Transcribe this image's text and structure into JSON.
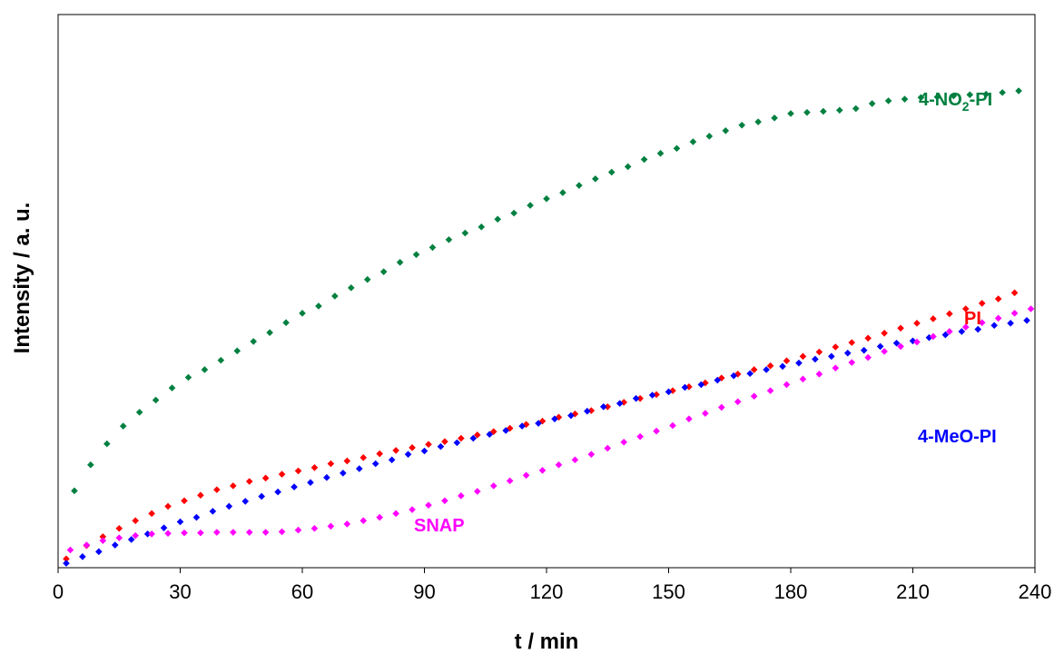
{
  "chart_data": {
    "type": "scatter",
    "xlabel": "t / min",
    "ylabel": "Intensity / a. u.",
    "xlim": [
      0,
      240
    ],
    "ylim": [
      0,
      100
    ],
    "x_ticks": [
      "0",
      "30",
      "60",
      "90",
      "120",
      "150",
      "180",
      "210",
      "240"
    ],
    "grid": false,
    "legend": "none",
    "series": [
      {
        "name": "4-NO",
        "name_subscript": "2",
        "name_suffix": "-PI",
        "label_text": "4-NO2-PI",
        "color": "#008040",
        "marker": "diamond",
        "points": [
          [
            4,
            13.9
          ],
          [
            8,
            18.6
          ],
          [
            12,
            22.4
          ],
          [
            16,
            25.6
          ],
          [
            20,
            28.1
          ],
          [
            24,
            30.3
          ],
          [
            28,
            32.5
          ],
          [
            32,
            34.4
          ],
          [
            36,
            35.8
          ],
          [
            40,
            37.5
          ],
          [
            44,
            39.2
          ],
          [
            48,
            40.9
          ],
          [
            52,
            42.5
          ],
          [
            56,
            44.3
          ],
          [
            60,
            46.0
          ],
          [
            64,
            47.3
          ],
          [
            68,
            49.1
          ],
          [
            72,
            50.6
          ],
          [
            76,
            52.1
          ],
          [
            80,
            53.5
          ],
          [
            84,
            55.2
          ],
          [
            88,
            56.6
          ],
          [
            92,
            57.9
          ],
          [
            96,
            59.3
          ],
          [
            100,
            60.5
          ],
          [
            104,
            61.6
          ],
          [
            108,
            63.0
          ],
          [
            112,
            64.1
          ],
          [
            116,
            65.5
          ],
          [
            120,
            66.7
          ],
          [
            124,
            67.8
          ],
          [
            128,
            69.1
          ],
          [
            132,
            70.3
          ],
          [
            136,
            71.5
          ],
          [
            140,
            72.5
          ],
          [
            144,
            73.8
          ],
          [
            148,
            74.9
          ],
          [
            152,
            75.8
          ],
          [
            156,
            77.0
          ],
          [
            160,
            78.0
          ],
          [
            164,
            79.0
          ],
          [
            168,
            80.0
          ],
          [
            172,
            80.6
          ],
          [
            176,
            81.3
          ],
          [
            180,
            82.1
          ],
          [
            184,
            82.3
          ],
          [
            188,
            82.5
          ],
          [
            192,
            82.7
          ],
          [
            196,
            83.0
          ],
          [
            200,
            83.9
          ],
          [
            204,
            84.4
          ],
          [
            208,
            84.7
          ],
          [
            212,
            85.0
          ],
          [
            216,
            85.1
          ],
          [
            220,
            85.3
          ],
          [
            224,
            85.5
          ],
          [
            228,
            85.6
          ],
          [
            232,
            85.9
          ],
          [
            236,
            86.2
          ]
        ]
      },
      {
        "name": "PI",
        "color": "#ff0000",
        "marker": "diamond",
        "points": [
          [
            2,
            1.6
          ],
          [
            7,
            4.0
          ],
          [
            11,
            5.6
          ],
          [
            15,
            7.1
          ],
          [
            19,
            8.5
          ],
          [
            23,
            9.8
          ],
          [
            27,
            11.1
          ],
          [
            31,
            12.1
          ],
          [
            35,
            13.1
          ],
          [
            39,
            14.1
          ],
          [
            43,
            14.8
          ],
          [
            47,
            15.6
          ],
          [
            51,
            16.2
          ],
          [
            55,
            16.9
          ],
          [
            59,
            17.5
          ],
          [
            63,
            18.1
          ],
          [
            67,
            18.8
          ],
          [
            71,
            19.3
          ],
          [
            75,
            19.9
          ],
          [
            79,
            20.6
          ],
          [
            83,
            21.2
          ],
          [
            87,
            21.7
          ],
          [
            91,
            22.3
          ],
          [
            95,
            22.8
          ],
          [
            99,
            23.4
          ],
          [
            103,
            24.0
          ],
          [
            107,
            24.6
          ],
          [
            111,
            25.2
          ],
          [
            115,
            25.9
          ],
          [
            119,
            26.5
          ],
          [
            123,
            27.2
          ],
          [
            127,
            27.8
          ],
          [
            131,
            28.4
          ],
          [
            135,
            29.1
          ],
          [
            139,
            29.9
          ],
          [
            143,
            30.6
          ],
          [
            147,
            31.3
          ],
          [
            151,
            32.0
          ],
          [
            155,
            32.7
          ],
          [
            159,
            33.4
          ],
          [
            163,
            34.3
          ],
          [
            167,
            35.0
          ],
          [
            171,
            35.8
          ],
          [
            175,
            36.5
          ],
          [
            179,
            37.4
          ],
          [
            183,
            38.2
          ],
          [
            187,
            39.0
          ],
          [
            191,
            39.9
          ],
          [
            195,
            40.7
          ],
          [
            199,
            41.5
          ],
          [
            203,
            42.4
          ],
          [
            207,
            43.3
          ],
          [
            211,
            44.2
          ],
          [
            215,
            45.0
          ],
          [
            219,
            45.9
          ],
          [
            223,
            46.8
          ],
          [
            227,
            47.8
          ],
          [
            231,
            48.6
          ],
          [
            235,
            49.7
          ]
        ]
      },
      {
        "name": "4-MeO-PI",
        "color": "#0000ff",
        "marker": "diamond",
        "points": [
          [
            2,
            0.8
          ],
          [
            6,
            2.0
          ],
          [
            10,
            2.9
          ],
          [
            14,
            4.1
          ],
          [
            18,
            5.1
          ],
          [
            22,
            6.1
          ],
          [
            26,
            7.2
          ],
          [
            30,
            8.3
          ],
          [
            34,
            9.1
          ],
          [
            38,
            10.2
          ],
          [
            42,
            11.1
          ],
          [
            46,
            12.0
          ],
          [
            50,
            12.9
          ],
          [
            54,
            13.7
          ],
          [
            58,
            14.6
          ],
          [
            62,
            15.4
          ],
          [
            66,
            16.3
          ],
          [
            70,
            17.1
          ],
          [
            74,
            17.9
          ],
          [
            78,
            18.8
          ],
          [
            82,
            19.5
          ],
          [
            86,
            20.5
          ],
          [
            90,
            21.1
          ],
          [
            94,
            21.9
          ],
          [
            98,
            22.6
          ],
          [
            102,
            23.4
          ],
          [
            106,
            24.1
          ],
          [
            110,
            24.8
          ],
          [
            114,
            25.6
          ],
          [
            118,
            26.1
          ],
          [
            122,
            26.9
          ],
          [
            126,
            27.5
          ],
          [
            130,
            28.3
          ],
          [
            134,
            29.1
          ],
          [
            138,
            29.7
          ],
          [
            142,
            30.6
          ],
          [
            146,
            31.2
          ],
          [
            150,
            31.8
          ],
          [
            154,
            32.6
          ],
          [
            158,
            33.1
          ],
          [
            162,
            33.9
          ],
          [
            166,
            34.7
          ],
          [
            170,
            35.1
          ],
          [
            174,
            35.8
          ],
          [
            178,
            36.4
          ],
          [
            182,
            37.0
          ],
          [
            186,
            37.7
          ],
          [
            190,
            38.2
          ],
          [
            194,
            38.8
          ],
          [
            198,
            39.3
          ],
          [
            202,
            40.0
          ],
          [
            206,
            40.6
          ],
          [
            210,
            41.0
          ],
          [
            214,
            41.6
          ],
          [
            218,
            42.1
          ],
          [
            222,
            42.7
          ],
          [
            226,
            43.1
          ],
          [
            230,
            43.8
          ],
          [
            234,
            44.2
          ],
          [
            238,
            44.7
          ]
        ]
      },
      {
        "name": "SNAP",
        "color": "#ff00ff",
        "marker": "diamond",
        "points": [
          [
            3,
            3.2
          ],
          [
            7,
            4.1
          ],
          [
            11,
            4.9
          ],
          [
            15,
            5.4
          ],
          [
            19,
            5.8
          ],
          [
            23,
            6.1
          ],
          [
            27,
            6.2
          ],
          [
            31,
            6.3
          ],
          [
            35,
            6.3
          ],
          [
            39,
            6.4
          ],
          [
            43,
            6.4
          ],
          [
            47,
            6.4
          ],
          [
            51,
            6.4
          ],
          [
            55,
            6.5
          ],
          [
            59,
            6.8
          ],
          [
            63,
            7.1
          ],
          [
            67,
            7.5
          ],
          [
            71,
            7.9
          ],
          [
            75,
            8.5
          ],
          [
            79,
            9.1
          ],
          [
            83,
            9.8
          ],
          [
            87,
            10.5
          ],
          [
            91,
            11.3
          ],
          [
            95,
            12.1
          ],
          [
            99,
            13.0
          ],
          [
            103,
            13.8
          ],
          [
            107,
            14.8
          ],
          [
            111,
            15.7
          ],
          [
            115,
            16.7
          ],
          [
            119,
            17.6
          ],
          [
            123,
            18.6
          ],
          [
            127,
            19.5
          ],
          [
            131,
            20.5
          ],
          [
            135,
            21.6
          ],
          [
            139,
            22.7
          ],
          [
            143,
            23.7
          ],
          [
            147,
            24.7
          ],
          [
            151,
            25.7
          ],
          [
            155,
            26.9
          ],
          [
            159,
            27.9
          ],
          [
            163,
            29.0
          ],
          [
            167,
            30.0
          ],
          [
            171,
            31.0
          ],
          [
            175,
            32.0
          ],
          [
            179,
            33.1
          ],
          [
            183,
            34.1
          ],
          [
            187,
            35.0
          ],
          [
            191,
            36.1
          ],
          [
            195,
            37.1
          ],
          [
            199,
            38.0
          ],
          [
            203,
            39.1
          ],
          [
            207,
            40.0
          ],
          [
            211,
            40.8
          ],
          [
            215,
            41.8
          ],
          [
            219,
            42.7
          ],
          [
            223,
            43.5
          ],
          [
            227,
            44.3
          ],
          [
            231,
            45.1
          ],
          [
            235,
            46.0
          ],
          [
            239,
            46.8
          ]
        ]
      }
    ]
  }
}
